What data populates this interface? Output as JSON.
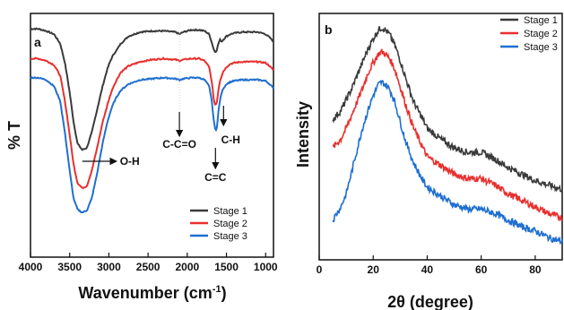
{
  "chart_data": [
    {
      "panel": "a",
      "type": "line",
      "title": "",
      "xlabel": "Wavenumber (cm",
      "xlabel_sup": "-1",
      "xlabel_tail": ")",
      "ylabel": "% T",
      "x_reversed": true,
      "xlim": [
        4000,
        900
      ],
      "x_ticks": [
        4000,
        3500,
        3000,
        2500,
        2000,
        1500,
        1000
      ],
      "ylim": [
        0,
        1
      ],
      "y_ticks_visible": false,
      "legend": {
        "placement": "bottom-right",
        "entries": [
          "Stage 1",
          "Stage 2",
          "Stage 3"
        ]
      },
      "annotations": [
        {
          "text": "O-H",
          "x": 3340
        },
        {
          "text": "C-C=O",
          "x": 2100
        },
        {
          "text": "C=C",
          "x": 1640
        },
        {
          "text": "C-H",
          "x": 1560
        }
      ],
      "series": [
        {
          "name": "Stage 1",
          "color": "#3a3a3a",
          "x": [
            4000,
            3900,
            3800,
            3700,
            3620,
            3560,
            3500,
            3450,
            3400,
            3340,
            3280,
            3220,
            3150,
            3080,
            3020,
            2980,
            2940,
            2900,
            2850,
            2750,
            2600,
            2450,
            2300,
            2150,
            2100,
            2050,
            1950,
            1850,
            1780,
            1720,
            1690,
            1660,
            1640,
            1620,
            1600,
            1580,
            1560,
            1540,
            1500,
            1450,
            1400,
            1300,
            1200,
            1100,
            1000,
            950,
            900
          ],
          "y": [
            0.94,
            0.94,
            0.93,
            0.915,
            0.87,
            0.78,
            0.64,
            0.5,
            0.4,
            0.37,
            0.38,
            0.45,
            0.56,
            0.67,
            0.75,
            0.79,
            0.82,
            0.84,
            0.87,
            0.905,
            0.925,
            0.93,
            0.93,
            0.925,
            0.915,
            0.925,
            0.935,
            0.935,
            0.93,
            0.915,
            0.88,
            0.84,
            0.83,
            0.845,
            0.875,
            0.89,
            0.88,
            0.89,
            0.905,
            0.915,
            0.92,
            0.925,
            0.925,
            0.925,
            0.915,
            0.9,
            0.88
          ]
        },
        {
          "name": "Stage 2",
          "color": "#e8302e",
          "x": [
            4000,
            3900,
            3800,
            3700,
            3620,
            3560,
            3500,
            3450,
            3400,
            3340,
            3280,
            3220,
            3150,
            3080,
            3020,
            2980,
            2940,
            2900,
            2850,
            2750,
            2600,
            2450,
            2300,
            2150,
            2100,
            2050,
            1950,
            1850,
            1780,
            1720,
            1690,
            1660,
            1640,
            1620,
            1600,
            1580,
            1560,
            1540,
            1500,
            1450,
            1400,
            1300,
            1200,
            1100,
            1000,
            950,
            900
          ],
          "y": [
            0.8,
            0.8,
            0.79,
            0.77,
            0.72,
            0.6,
            0.44,
            0.3,
            0.215,
            0.19,
            0.2,
            0.27,
            0.38,
            0.5,
            0.58,
            0.63,
            0.67,
            0.7,
            0.735,
            0.765,
            0.785,
            0.795,
            0.8,
            0.795,
            0.79,
            0.795,
            0.8,
            0.8,
            0.79,
            0.76,
            0.7,
            0.6,
            0.58,
            0.6,
            0.66,
            0.7,
            0.72,
            0.74,
            0.76,
            0.775,
            0.78,
            0.785,
            0.785,
            0.785,
            0.78,
            0.765,
            0.745
          ]
        },
        {
          "name": "Stage 3",
          "color": "#1f6fd1",
          "x": [
            4000,
            3900,
            3800,
            3700,
            3620,
            3560,
            3500,
            3450,
            3400,
            3340,
            3280,
            3220,
            3150,
            3080,
            3020,
            2980,
            2940,
            2900,
            2850,
            2750,
            2600,
            2450,
            2300,
            2150,
            2100,
            2050,
            1950,
            1850,
            1780,
            1720,
            1690,
            1660,
            1640,
            1620,
            1600,
            1580,
            1560,
            1540,
            1500,
            1450,
            1400,
            1300,
            1200,
            1100,
            1000,
            950,
            900
          ],
          "y": [
            0.71,
            0.71,
            0.7,
            0.67,
            0.6,
            0.45,
            0.27,
            0.14,
            0.09,
            0.075,
            0.085,
            0.14,
            0.26,
            0.4,
            0.5,
            0.55,
            0.59,
            0.62,
            0.65,
            0.68,
            0.7,
            0.705,
            0.71,
            0.705,
            0.7,
            0.705,
            0.71,
            0.71,
            0.7,
            0.67,
            0.61,
            0.5,
            0.46,
            0.48,
            0.56,
            0.61,
            0.64,
            0.66,
            0.68,
            0.69,
            0.695,
            0.7,
            0.7,
            0.7,
            0.695,
            0.68,
            0.66
          ]
        }
      ]
    },
    {
      "panel": "b",
      "type": "line",
      "title": "",
      "xlabel": "2θ (degree)",
      "ylabel": "Intensity",
      "xlim": [
        0,
        90
      ],
      "x_ticks": [
        0,
        20,
        40,
        60,
        80
      ],
      "ylim": [
        0,
        1
      ],
      "y_ticks_visible": false,
      "legend": {
        "placement": "top-right",
        "entries": [
          "Stage 1",
          "Stage 2",
          "Stage 3"
        ]
      },
      "series": [
        {
          "name": "Stage 1",
          "color": "#3a3a3a",
          "x": [
            5,
            8,
            10,
            12,
            14,
            16,
            18,
            20,
            22,
            23,
            24,
            26,
            28,
            30,
            32,
            35,
            38,
            40,
            45,
            50,
            55,
            60,
            65,
            70,
            75,
            80,
            85,
            90
          ],
          "y": [
            0.56,
            0.6,
            0.65,
            0.7,
            0.76,
            0.82,
            0.88,
            0.93,
            0.97,
            0.98,
            0.975,
            0.95,
            0.9,
            0.83,
            0.75,
            0.64,
            0.57,
            0.52,
            0.47,
            0.43,
            0.41,
            0.41,
            0.38,
            0.34,
            0.31,
            0.28,
            0.26,
            0.24
          ]
        },
        {
          "name": "Stage 2",
          "color": "#e8302e",
          "x": [
            5,
            8,
            10,
            12,
            14,
            16,
            18,
            20,
            22,
            23,
            24,
            26,
            28,
            30,
            32,
            35,
            38,
            40,
            45,
            50,
            55,
            60,
            65,
            70,
            75,
            80,
            85,
            90
          ],
          "y": [
            0.43,
            0.47,
            0.52,
            0.58,
            0.64,
            0.7,
            0.77,
            0.82,
            0.86,
            0.87,
            0.865,
            0.84,
            0.79,
            0.71,
            0.63,
            0.52,
            0.44,
            0.39,
            0.35,
            0.31,
            0.29,
            0.29,
            0.26,
            0.22,
            0.19,
            0.16,
            0.13,
            0.11
          ]
        },
        {
          "name": "Stage 3",
          "color": "#1f6fd1",
          "x": [
            5,
            8,
            10,
            12,
            14,
            16,
            18,
            20,
            22,
            23,
            24,
            26,
            28,
            30,
            32,
            35,
            38,
            40,
            45,
            50,
            55,
            60,
            65,
            70,
            75,
            80,
            85,
            90
          ],
          "y": [
            0.1,
            0.16,
            0.22,
            0.32,
            0.42,
            0.52,
            0.6,
            0.67,
            0.72,
            0.73,
            0.725,
            0.7,
            0.64,
            0.55,
            0.46,
            0.36,
            0.29,
            0.25,
            0.21,
            0.17,
            0.15,
            0.15,
            0.13,
            0.1,
            0.07,
            0.05,
            0.02,
            0.0
          ]
        }
      ]
    }
  ]
}
